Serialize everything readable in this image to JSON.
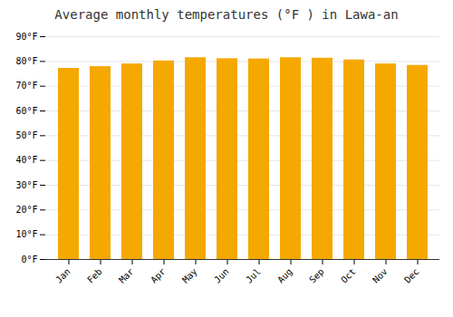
{
  "chart_data": {
    "type": "bar",
    "title": "Average monthly temperatures (°F ) in Lawa-an",
    "categories": [
      "Jan",
      "Feb",
      "Mar",
      "Apr",
      "May",
      "Jun",
      "Jul",
      "Aug",
      "Sep",
      "Oct",
      "Nov",
      "Dec"
    ],
    "values": [
      77.2,
      77.9,
      79.0,
      80.2,
      81.5,
      81.1,
      81.0,
      81.5,
      81.3,
      80.6,
      79.0,
      78.4
    ],
    "color": "#F5A800",
    "ylim": [
      0,
      90
    ],
    "yticks": [
      {
        "value": 0,
        "label": "0°F"
      },
      {
        "value": 10,
        "label": "10°F"
      },
      {
        "value": 20,
        "label": "20°F"
      },
      {
        "value": 30,
        "label": "30°F"
      },
      {
        "value": 40,
        "label": "40°F"
      },
      {
        "value": 50,
        "label": "50°F"
      },
      {
        "value": 60,
        "label": "60°F"
      },
      {
        "value": 70,
        "label": "70°F"
      },
      {
        "value": 80,
        "label": "80°F"
      },
      {
        "value": 90,
        "label": "90°F"
      }
    ],
    "grid": true
  }
}
